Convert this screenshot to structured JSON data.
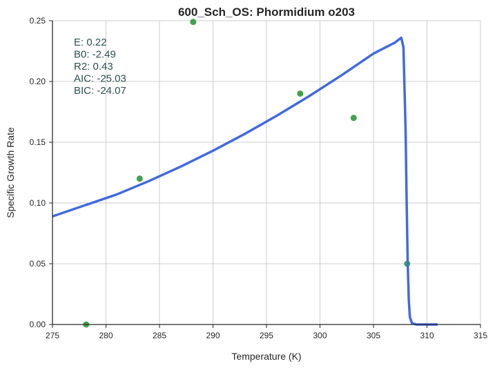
{
  "chart_data": {
    "type": "scatter",
    "title": "600_Sch_OS: Phormidium o203",
    "xlabel": "Temperature (K)",
    "ylabel": "Specific Growth Rate",
    "xlim": [
      275,
      315
    ],
    "ylim": [
      0.0,
      0.25
    ],
    "xticks": [
      "275",
      "280",
      "285",
      "290",
      "295",
      "300",
      "305",
      "310",
      "315"
    ],
    "yticks": [
      "0.00",
      "0.05",
      "0.10",
      "0.15",
      "0.20",
      "0.25"
    ],
    "grid": true,
    "annotation_lines": [
      "E:  0.22",
      "B0:  -2.49",
      "R2:  0.43",
      "AIC: -25.03",
      "BIC: -24.07"
    ],
    "series": [
      {
        "kind": "points",
        "color": "#3fa34d",
        "x": [
          278.15,
          283.15,
          288.15,
          298.15,
          303.15,
          308.15
        ],
        "y": [
          0.0,
          0.12,
          0.249,
          0.19,
          0.17,
          0.05
        ]
      },
      {
        "kind": "line",
        "color": "#4169e1",
        "x": [
          275,
          278,
          281,
          284,
          287,
          290,
          293,
          296,
          299,
          302,
          305,
          307,
          307.6,
          307.8,
          308.0,
          308.1,
          308.2,
          308.3,
          308.4,
          308.6,
          309,
          310,
          311
        ],
        "y": [
          0.089,
          0.098,
          0.107,
          0.118,
          0.13,
          0.143,
          0.157,
          0.172,
          0.188,
          0.205,
          0.223,
          0.232,
          0.236,
          0.228,
          0.16,
          0.1,
          0.05,
          0.02,
          0.006,
          0.001,
          0.0,
          0.0,
          0.0
        ]
      }
    ]
  }
}
